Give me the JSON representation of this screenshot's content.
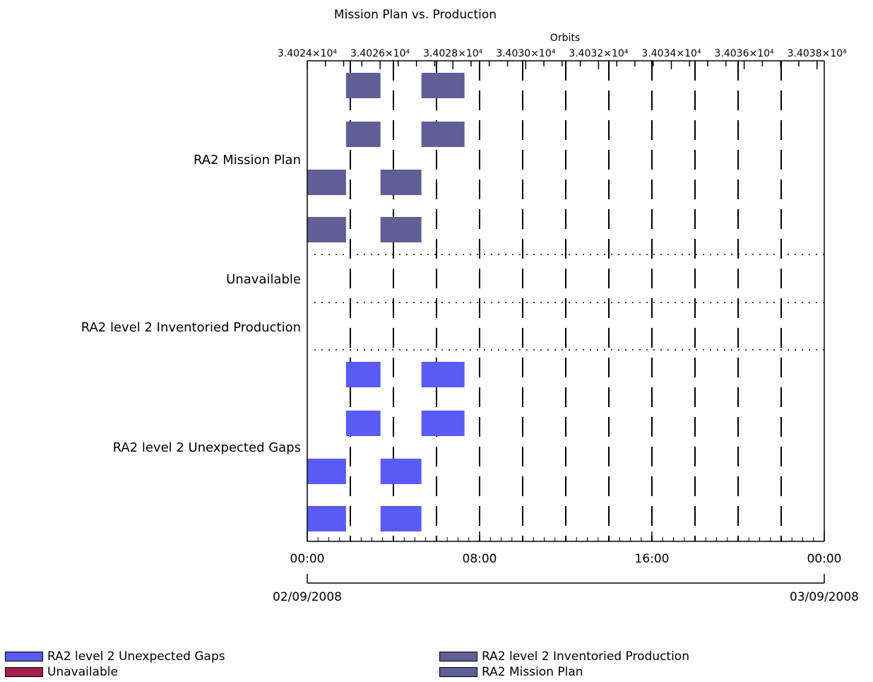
{
  "chart_data": {
    "type": "gantt",
    "title": "Mission Plan vs. Production",
    "top_axis": {
      "label": "Orbits",
      "tick_labels": [
        "3.4024×10⁴",
        "3.4026×10⁴",
        "3.4028×10⁴",
        "3.4030×10⁴",
        "3.4032×10⁴",
        "3.4034×10⁴",
        "3.4036×10⁴",
        "3.4038×10⁴"
      ],
      "range": [
        34024,
        34038.2
      ]
    },
    "x_axis": {
      "tick_labels": [
        "00:00",
        "08:00",
        "16:00",
        "00:00"
      ],
      "tick_hours": [
        0,
        8,
        16,
        24
      ],
      "date_start": "02/09/2008",
      "date_end": "03/09/2008",
      "range_hours": [
        0,
        24
      ]
    },
    "categories": [
      "RA2 Mission Plan",
      "Unavailable",
      "RA2 level 2 Inventoried Production",
      "RA2 level 2 Unexpected Gaps"
    ],
    "series": [
      {
        "name": "RA2 Mission Plan",
        "color": "#5f5f96",
        "segments": [
          {
            "lane": 0,
            "start_hours": 1.8,
            "end_hours": 3.4
          },
          {
            "lane": 0,
            "start_hours": 5.3,
            "end_hours": 7.3
          },
          {
            "lane": 1,
            "start_hours": 1.8,
            "end_hours": 3.4
          },
          {
            "lane": 1,
            "start_hours": 5.3,
            "end_hours": 7.3
          },
          {
            "lane": 2,
            "start_hours": 0.0,
            "end_hours": 1.8
          },
          {
            "lane": 2,
            "start_hours": 3.4,
            "end_hours": 5.3
          },
          {
            "lane": 3,
            "start_hours": 0.0,
            "end_hours": 1.8
          },
          {
            "lane": 3,
            "start_hours": 3.4,
            "end_hours": 5.3
          }
        ]
      },
      {
        "name": "RA2 level 2 Unexpected Gaps",
        "color": "#5a5af5",
        "segments": [
          {
            "lane": 0,
            "start_hours": 1.8,
            "end_hours": 3.4
          },
          {
            "lane": 0,
            "start_hours": 5.3,
            "end_hours": 7.3
          },
          {
            "lane": 1,
            "start_hours": 1.8,
            "end_hours": 3.4
          },
          {
            "lane": 1,
            "start_hours": 5.3,
            "end_hours": 7.3
          },
          {
            "lane": 2,
            "start_hours": 0.0,
            "end_hours": 1.8
          },
          {
            "lane": 2,
            "start_hours": 3.4,
            "end_hours": 5.3
          },
          {
            "lane": 3,
            "start_hours": 0.0,
            "end_hours": 1.8
          },
          {
            "lane": 3,
            "start_hours": 3.4,
            "end_hours": 5.3
          }
        ]
      },
      {
        "name": "Unavailable",
        "color": "#a0204e",
        "segments": []
      },
      {
        "name": "RA2 level 2 Inventoried Production",
        "color": "#5f5f96",
        "segments": []
      }
    ],
    "legend": {
      "left": [
        {
          "label": "RA2 level 2 Unexpected Gaps",
          "color": "#5a5af5"
        },
        {
          "label": "Unavailable",
          "color": "#a0204e"
        }
      ],
      "right": [
        {
          "label": "RA2 level 2 Inventoried Production",
          "color": "#5f5f96"
        },
        {
          "label": "RA2 Mission Plan",
          "color": "#5f5f96"
        }
      ]
    }
  }
}
